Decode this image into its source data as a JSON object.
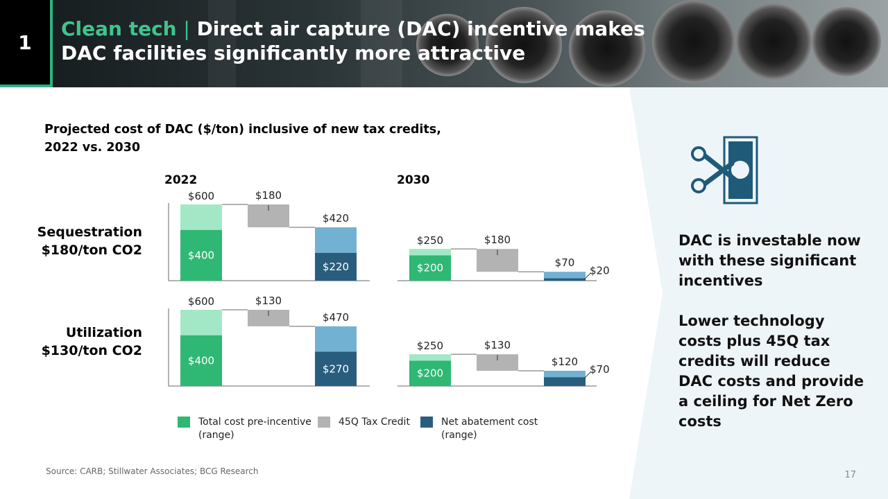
{
  "slide": {
    "number": "1",
    "title_prefix": "Clean tech",
    "title_separator": "|",
    "title_line1": "Direct air capture (DAC) incentive makes",
    "title_line2": "DAC facilities significantly more attractive"
  },
  "chart_title_line1": "Projected cost of DAC ($/ton) inclusive of new tax credits,",
  "chart_title_line2": "2022 vs. 2030",
  "rows": [
    {
      "line1": "Sequestration",
      "line2": "$180/ton CO2"
    },
    {
      "line1": "Utilization",
      "line2": "$130/ton CO2"
    }
  ],
  "years": [
    "2022",
    "2030"
  ],
  "legend": [
    {
      "label": "Total cost pre-incentive (range)",
      "color": "#2fb774"
    },
    {
      "label": "45Q Tax Credit",
      "color": "#b3b3b3"
    },
    {
      "label": "Net abatement cost (range)",
      "color": "#295d7d"
    }
  ],
  "colors": {
    "total_low": "#2fb774",
    "total_high": "#a3e8c6",
    "credit": "#b3b3b3",
    "net_low": "#295d7d",
    "net_high": "#73b1d3",
    "accent": "#2fb380",
    "panel": "#eef5f9"
  },
  "right_panel": {
    "point1": [
      "DAC is investable now",
      "with these significant",
      "incentives"
    ],
    "point2": [
      "Lower technology",
      "costs plus 45Q tax",
      "credits will reduce",
      "DAC costs and provide",
      "a ceiling for Net Zero",
      "costs"
    ]
  },
  "icon": "scissors-cutting-dollar-bill-icon",
  "source": "Source: CARB; Stillwater Associates; BCG Research",
  "page_number": "17",
  "chart_data": [
    {
      "type": "waterfall",
      "title": "Sequestration $180/ton CO2 — 2022",
      "unit": "$/ton",
      "total_range": [
        400,
        600
      ],
      "credit": 180,
      "net_range": [
        220,
        420
      ],
      "labels": {
        "total_low": "$400",
        "total_high": "$600",
        "credit": "$180",
        "net_low": "$220",
        "net_high": "$420"
      }
    },
    {
      "type": "waterfall",
      "title": "Sequestration $180/ton CO2 — 2030",
      "unit": "$/ton",
      "total_range": [
        200,
        250
      ],
      "credit": 180,
      "net_range": [
        20,
        70
      ],
      "labels": {
        "total_low": "$200",
        "total_high": "$250",
        "credit": "$180",
        "net_low": "$20",
        "net_high": "$70"
      }
    },
    {
      "type": "waterfall",
      "title": "Utilization $130/ton CO2 — 2022",
      "unit": "$/ton",
      "total_range": [
        400,
        600
      ],
      "credit": 130,
      "net_range": [
        270,
        470
      ],
      "labels": {
        "total_low": "$400",
        "total_high": "$600",
        "credit": "$130",
        "net_low": "$270",
        "net_high": "$470"
      }
    },
    {
      "type": "waterfall",
      "title": "Utilization $130/ton CO2 — 2030",
      "unit": "$/ton",
      "total_range": [
        200,
        250
      ],
      "credit": 130,
      "net_range": [
        70,
        120
      ],
      "labels": {
        "total_low": "$200",
        "total_high": "$250",
        "credit": "$130",
        "net_low": "$70",
        "net_high": "$120"
      }
    }
  ]
}
